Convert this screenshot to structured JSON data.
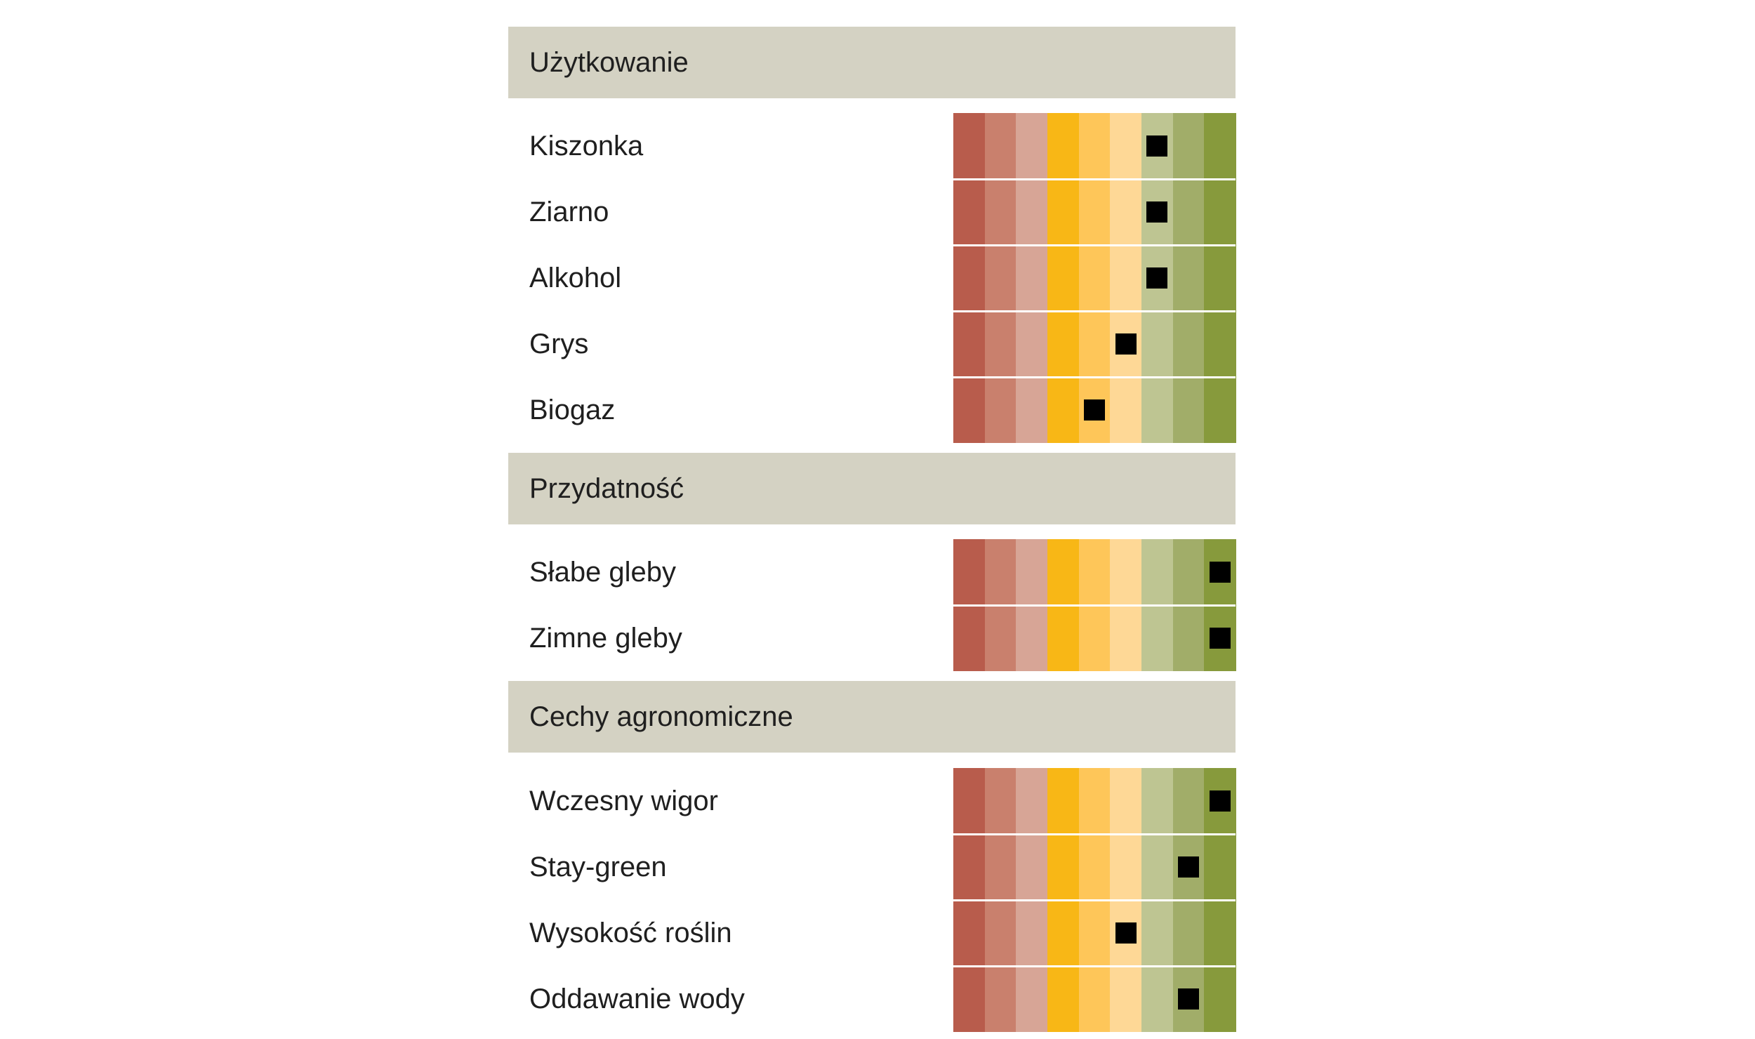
{
  "chart_data": {
    "type": "rating-scale",
    "scale_levels": 9,
    "scale_colors": [
      "#b85c4c",
      "#c9806d",
      "#d7a596",
      "#f8b716",
      "#fec659",
      "#fed896",
      "#bec592",
      "#a1ad69",
      "#879a3c"
    ],
    "marker_color": "#000000",
    "sections": [
      {
        "title": "Użytkowanie",
        "rows": [
          {
            "label": "Kiszonka",
            "value": 7
          },
          {
            "label": "Ziarno",
            "value": 7
          },
          {
            "label": "Alkohol",
            "value": 7
          },
          {
            "label": "Grys",
            "value": 6
          },
          {
            "label": "Biogaz",
            "value": 5
          }
        ]
      },
      {
        "title": "Przydatność",
        "rows": [
          {
            "label": "Słabe gleby",
            "value": 9
          },
          {
            "label": "Zimne gleby",
            "value": 9
          }
        ]
      },
      {
        "title": "Cechy agronomiczne",
        "rows": [
          {
            "label": "Wczesny wigor",
            "value": 9
          },
          {
            "label": "Stay-green",
            "value": 8
          },
          {
            "label": "Wysokość roślin",
            "value": 6
          },
          {
            "label": "Oddawanie wody",
            "value": 8
          }
        ]
      }
    ]
  }
}
